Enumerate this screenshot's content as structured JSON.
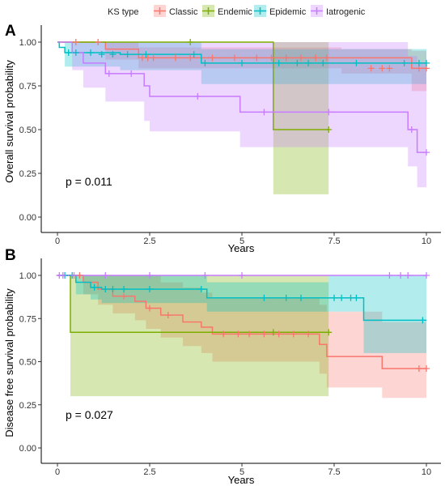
{
  "legend": {
    "title": "KS type",
    "entries": [
      {
        "name": "Classic",
        "color": "#F8766D"
      },
      {
        "name": "Endemic",
        "color": "#7CAE00"
      },
      {
        "name": "Epidemic",
        "color": "#00BFC4"
      },
      {
        "name": "Iatrogenic",
        "color": "#C77CFF"
      }
    ]
  },
  "chart_data": [
    {
      "type": "line",
      "step": true,
      "panel_label": "A",
      "title": "",
      "xlabel": "Years",
      "ylabel": "Overall survival probability",
      "xlim": [
        0,
        10
      ],
      "ylim": [
        0,
        1
      ],
      "xticks": [
        0,
        2.5,
        5,
        7.5,
        10
      ],
      "xtick_labels": [
        "0",
        "2.5",
        "5",
        "7.5",
        "10"
      ],
      "yticks": [
        0,
        0.25,
        0.5,
        0.75,
        1
      ],
      "ytick_labels": [
        "0.00",
        "0.25",
        "0.50",
        "0.75",
        "1.00"
      ],
      "annotation": "p = 0.011",
      "series": [
        {
          "name": "Classic",
          "color": "#F8766D",
          "steps": [
            [
              0,
              1
            ],
            [
              1.3,
              0.96
            ],
            [
              2.2,
              0.91
            ],
            [
              5.2,
              0.91
            ],
            [
              9.6,
              0.85
            ],
            [
              10,
              0.85
            ]
          ],
          "ci_steps": [
            [
              0,
              1,
              1
            ],
            [
              1.3,
              1,
              0.9
            ],
            [
              2.2,
              0.97,
              0.85
            ],
            [
              7.7,
              0.96,
              0.82
            ],
            [
              9.6,
              0.95,
              0.72
            ],
            [
              10,
              0.95,
              0.72
            ]
          ],
          "censored": [
            [
              0.5,
              1
            ],
            [
              1.1,
              1
            ],
            [
              2.3,
              0.91
            ],
            [
              2.45,
              0.91
            ],
            [
              2.6,
              0.91
            ],
            [
              3.2,
              0.91
            ],
            [
              3.6,
              0.91
            ],
            [
              4.2,
              0.91
            ],
            [
              4.8,
              0.91
            ],
            [
              5.4,
              0.91
            ],
            [
              5.8,
              0.91
            ],
            [
              6.2,
              0.91
            ],
            [
              6.6,
              0.91
            ],
            [
              7.0,
              0.91
            ],
            [
              7.3,
              0.91
            ],
            [
              8.5,
              0.85
            ],
            [
              8.8,
              0.85
            ],
            [
              9.0,
              0.85
            ],
            [
              9.8,
              0.85
            ],
            [
              10.0,
              0.85
            ]
          ]
        },
        {
          "name": "Endemic",
          "color": "#7CAE00",
          "steps": [
            [
              0,
              1
            ],
            [
              5.85,
              0.5
            ],
            [
              7.35,
              0.5
            ]
          ],
          "ci_steps": [
            [
              0,
              1,
              1
            ],
            [
              5.85,
              1,
              0.13
            ],
            [
              7.35,
              1,
              0.13
            ]
          ],
          "censored": [
            [
              3.6,
              1
            ],
            [
              7.35,
              0.5
            ]
          ]
        },
        {
          "name": "Epidemic",
          "color": "#00BFC4",
          "steps": [
            [
              0,
              1
            ],
            [
              0.05,
              0.97
            ],
            [
              0.2,
              0.94
            ],
            [
              1.7,
              0.93
            ],
            [
              3.9,
              0.88
            ],
            [
              10,
              0.88
            ]
          ],
          "ci_steps": [
            [
              0,
              1,
              1
            ],
            [
              0.2,
              1,
              0.86
            ],
            [
              1.7,
              1,
              0.84
            ],
            [
              3.9,
              0.96,
              0.76
            ],
            [
              10,
              1,
              0.76
            ]
          ],
          "censored": [
            [
              0.3,
              0.94
            ],
            [
              0.5,
              0.94
            ],
            [
              0.9,
              0.94
            ],
            [
              1.2,
              0.93
            ],
            [
              1.5,
              0.93
            ],
            [
              1.9,
              0.93
            ],
            [
              2.4,
              0.93
            ],
            [
              3.7,
              0.93
            ],
            [
              4.0,
              0.88
            ],
            [
              5.0,
              0.88
            ],
            [
              6.0,
              0.88
            ],
            [
              6.5,
              0.88
            ],
            [
              6.8,
              0.88
            ],
            [
              7.2,
              0.88
            ],
            [
              8.1,
              0.88
            ],
            [
              9.4,
              0.88
            ],
            [
              9.8,
              0.88
            ],
            [
              10.0,
              0.88
            ]
          ]
        },
        {
          "name": "Iatrogenic",
          "color": "#C77CFF",
          "steps": [
            [
              0,
              1
            ],
            [
              0.4,
              0.94
            ],
            [
              0.7,
              0.88
            ],
            [
              1.3,
              0.82
            ],
            [
              2.35,
              0.75
            ],
            [
              2.5,
              0.69
            ],
            [
              4.95,
              0.6
            ],
            [
              9.5,
              0.5
            ],
            [
              9.75,
              0.37
            ],
            [
              10,
              0.37
            ]
          ],
          "ci_steps": [
            [
              0,
              1,
              1
            ],
            [
              0.4,
              1,
              0.84
            ],
            [
              0.7,
              1,
              0.74
            ],
            [
              1.3,
              1,
              0.66
            ],
            [
              2.35,
              1,
              0.55
            ],
            [
              2.5,
              1,
              0.49
            ],
            [
              4.95,
              1,
              0.4
            ],
            [
              9.5,
              0.92,
              0.29
            ],
            [
              9.75,
              0.88,
              0.17
            ],
            [
              10,
              0.88,
              0.17
            ]
          ],
          "censored": [
            [
              1.4,
              0.82
            ],
            [
              2.0,
              0.82
            ],
            [
              3.8,
              0.69
            ],
            [
              5.6,
              0.6
            ],
            [
              7.35,
              0.6
            ],
            [
              9.6,
              0.5
            ],
            [
              10.0,
              0.37
            ]
          ]
        }
      ]
    },
    {
      "type": "line",
      "step": true,
      "panel_label": "B",
      "title": "",
      "xlabel": "Years",
      "ylabel": "Disease free survival probability",
      "xlim": [
        0,
        10
      ],
      "ylim": [
        0,
        1
      ],
      "xticks": [
        0,
        2.5,
        5,
        7.5,
        10
      ],
      "xtick_labels": [
        "0",
        "2.5",
        "5",
        "7.5",
        "10"
      ],
      "yticks": [
        0,
        0.25,
        0.5,
        0.75,
        1
      ],
      "ytick_labels": [
        "0.00",
        "0.25",
        "0.50",
        "0.75",
        "1.00"
      ],
      "annotation": "p = 0.027",
      "series": [
        {
          "name": "Classic",
          "color": "#F8766D",
          "steps": [
            [
              0,
              1
            ],
            [
              0.7,
              0.96
            ],
            [
              1.1,
              0.92
            ],
            [
              1.5,
              0.88
            ],
            [
              2.1,
              0.85
            ],
            [
              2.4,
              0.81
            ],
            [
              2.8,
              0.77
            ],
            [
              3.4,
              0.73
            ],
            [
              3.9,
              0.7
            ],
            [
              4.2,
              0.66
            ],
            [
              7.1,
              0.6
            ],
            [
              7.3,
              0.53
            ],
            [
              8.8,
              0.46
            ],
            [
              10,
              0.46
            ]
          ],
          "ci_steps": [
            [
              0,
              1,
              1
            ],
            [
              0.7,
              1,
              0.89
            ],
            [
              1.1,
              1,
              0.83
            ],
            [
              1.5,
              1,
              0.78
            ],
            [
              2.1,
              1,
              0.74
            ],
            [
              2.4,
              1,
              0.69
            ],
            [
              2.8,
              0.96,
              0.64
            ],
            [
              3.4,
              0.93,
              0.59
            ],
            [
              3.9,
              0.9,
              0.55
            ],
            [
              4.2,
              0.87,
              0.5
            ],
            [
              7.1,
              0.83,
              0.43
            ],
            [
              7.3,
              0.79,
              0.35
            ],
            [
              8.3,
              0.79,
              0.35
            ],
            [
              8.8,
              0.73,
              0.29
            ],
            [
              10,
              0.73,
              0.29
            ]
          ],
          "censored": [
            [
              0.6,
              1
            ],
            [
              1.3,
              0.92
            ],
            [
              1.8,
              0.88
            ],
            [
              2.5,
              0.81
            ],
            [
              3.0,
              0.77
            ],
            [
              4.5,
              0.66
            ],
            [
              4.9,
              0.66
            ],
            [
              5.2,
              0.66
            ],
            [
              5.6,
              0.66
            ],
            [
              6.0,
              0.66
            ],
            [
              6.4,
              0.66
            ],
            [
              6.8,
              0.66
            ],
            [
              9.8,
              0.46
            ],
            [
              10.0,
              0.46
            ]
          ]
        },
        {
          "name": "Endemic",
          "color": "#7CAE00",
          "steps": [
            [
              0,
              1
            ],
            [
              0.35,
              0.67
            ],
            [
              7.35,
              0.67
            ]
          ],
          "ci_steps": [
            [
              0,
              1,
              1
            ],
            [
              0.35,
              1,
              0.3
            ],
            [
              7.35,
              1,
              0.3
            ]
          ],
          "censored": [
            [
              5.85,
              0.67
            ],
            [
              7.35,
              0.67
            ]
          ]
        },
        {
          "name": "Epidemic",
          "color": "#00BFC4",
          "steps": [
            [
              0,
              1
            ],
            [
              0.5,
              0.96
            ],
            [
              0.9,
              0.93
            ],
            [
              1.2,
              0.92
            ],
            [
              4.05,
              0.87
            ],
            [
              8.3,
              0.74
            ],
            [
              10,
              0.74
            ]
          ],
          "ci_steps": [
            [
              0,
              1,
              1
            ],
            [
              0.5,
              1,
              0.89
            ],
            [
              0.9,
              1,
              0.86
            ],
            [
              1.2,
              1,
              0.84
            ],
            [
              4.05,
              0.96,
              0.79
            ],
            [
              7.35,
              1,
              0.79
            ],
            [
              8.3,
              1,
              0.55
            ],
            [
              10,
              1,
              0.55
            ]
          ],
          "censored": [
            [
              0.2,
              1
            ],
            [
              0.4,
              1
            ],
            [
              1.0,
              0.93
            ],
            [
              1.3,
              0.92
            ],
            [
              1.5,
              0.92
            ],
            [
              1.8,
              0.92
            ],
            [
              2.5,
              0.92
            ],
            [
              3.9,
              0.92
            ],
            [
              5.6,
              0.87
            ],
            [
              6.2,
              0.87
            ],
            [
              6.6,
              0.87
            ],
            [
              7.5,
              0.87
            ],
            [
              7.7,
              0.87
            ],
            [
              7.95,
              0.87
            ],
            [
              8.1,
              0.87
            ],
            [
              9.9,
              0.74
            ]
          ]
        },
        {
          "name": "Iatrogenic",
          "color": "#C77CFF",
          "steps": [
            [
              0,
              1
            ],
            [
              10,
              1
            ]
          ],
          "ci_steps": [
            [
              0,
              1,
              1
            ],
            [
              10,
              1,
              1
            ]
          ],
          "censored": [
            [
              0.05,
              1
            ],
            [
              0.15,
              1
            ],
            [
              0.45,
              1
            ],
            [
              1.3,
              1
            ],
            [
              2.5,
              1
            ],
            [
              4.0,
              1
            ],
            [
              5.0,
              1
            ],
            [
              9.0,
              1
            ],
            [
              9.3,
              1
            ],
            [
              9.5,
              1
            ],
            [
              10.0,
              1
            ]
          ]
        }
      ]
    }
  ]
}
